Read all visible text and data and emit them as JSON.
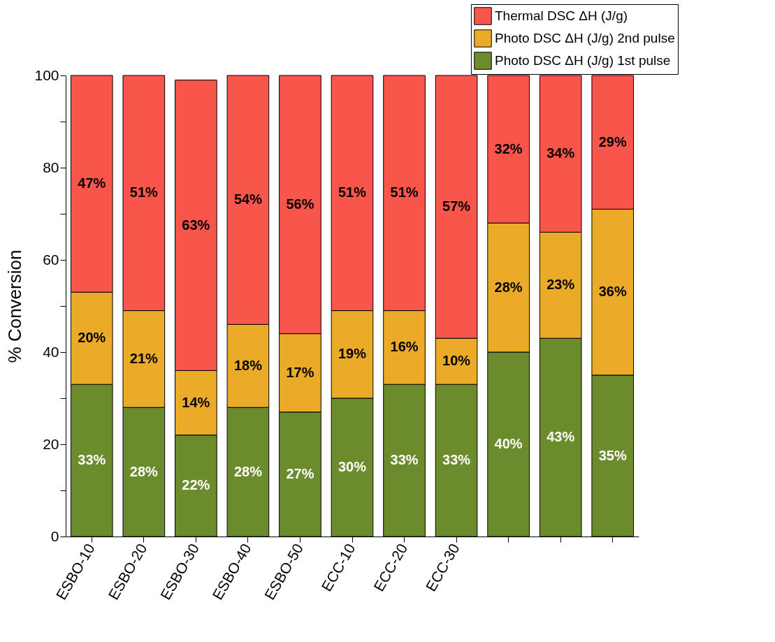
{
  "chart_data": {
    "type": "bar",
    "stacked": true,
    "ylabel": "% Conversion",
    "categories": [
      "ESBO-10",
      "ESBO-20",
      "ESBO-30",
      "ESBO-40",
      "ESBO-50",
      "ECC-10",
      "ECC-20",
      "ECC-30",
      null,
      null,
      null
    ],
    "series": [
      {
        "name": "Photo DSC ΔH (J/g) 1st pulse",
        "color": "#6b8b2c",
        "values": [
          33,
          28,
          22,
          28,
          27,
          30,
          33,
          33,
          40,
          43,
          35
        ],
        "value_labels": [
          "33%",
          "28%",
          "22%",
          "28%",
          "27%",
          "30%",
          "33%",
          "33%",
          "40%",
          "43%",
          "35%"
        ]
      },
      {
        "name": "Photo DSC ΔH (J/g) 2nd pulse",
        "color": "#ebab29",
        "values": [
          20,
          21,
          14,
          18,
          17,
          19,
          16,
          10,
          28,
          23,
          36
        ],
        "value_labels": [
          "20%",
          "21%",
          "14%",
          "18%",
          "17%",
          "19%",
          "16%",
          "10%",
          "28%",
          "23%",
          "36%"
        ]
      },
      {
        "name": "Thermal DSC ΔH (J/g)",
        "color": "#f9564b",
        "values": [
          47,
          51,
          63,
          54,
          56,
          51,
          51,
          57,
          32,
          34,
          29
        ],
        "value_labels": [
          "47%",
          "51%",
          "63%",
          "54%",
          "56%",
          "51%",
          "51%",
          "57%",
          "32%",
          "34%",
          "29%"
        ]
      }
    ],
    "ylim": [
      0,
      100
    ],
    "yticks": [
      0,
      {
        "value": 10,
        "label": null
      },
      20,
      {
        "value": 30,
        "label": null
      },
      40,
      {
        "value": 50,
        "label": null
      },
      60,
      {
        "value": 70,
        "label": null
      },
      80,
      {
        "value": 90,
        "label": null
      },
      100
    ],
    "grid": false,
    "legend": "top right"
  }
}
